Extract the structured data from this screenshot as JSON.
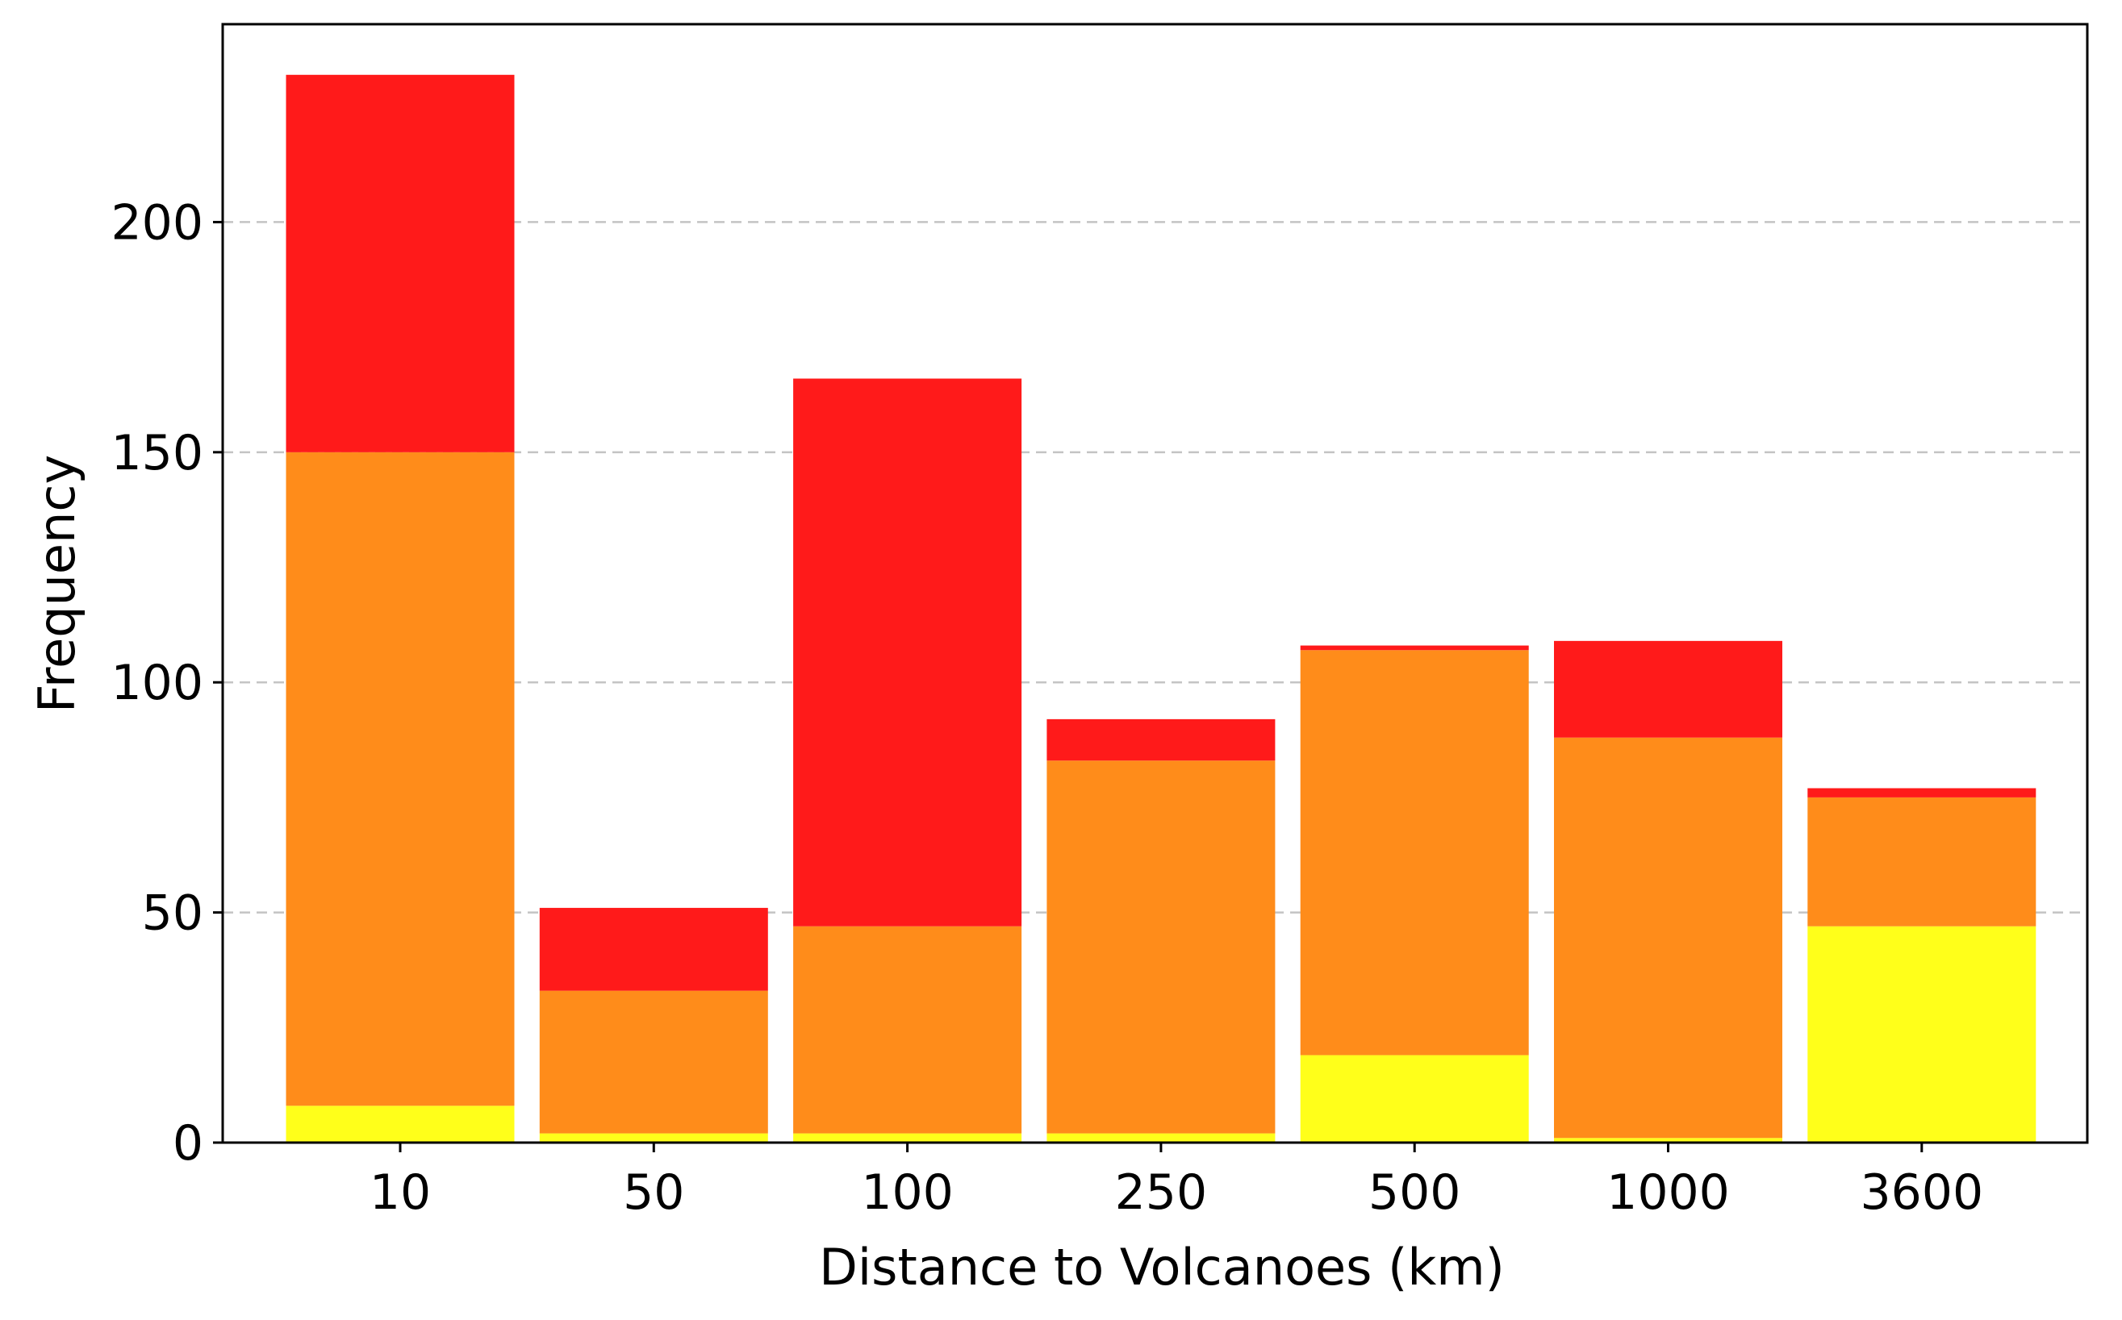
{
  "chart_data": {
    "type": "bar",
    "stacked": true,
    "title": "",
    "xlabel": "Distance to Volcanoes (km)",
    "ylabel": "Frequency",
    "categories": [
      "10",
      "50",
      "100",
      "250",
      "500",
      "1000",
      "3600"
    ],
    "ylim": [
      0,
      243
    ],
    "yticks": [
      0,
      50,
      100,
      150,
      200
    ],
    "grid": "horizontal dashed",
    "legend": "none",
    "series": [
      {
        "color": "#ffff1a",
        "values": [
          8,
          2,
          2,
          2,
          19,
          1,
          47
        ]
      },
      {
        "color": "#ff8c1a",
        "values": [
          142,
          31,
          45,
          81,
          88,
          87,
          28
        ]
      },
      {
        "color": "#ff1a1a",
        "values": [
          82,
          18,
          119,
          9,
          1,
          21,
          2
        ]
      }
    ]
  }
}
